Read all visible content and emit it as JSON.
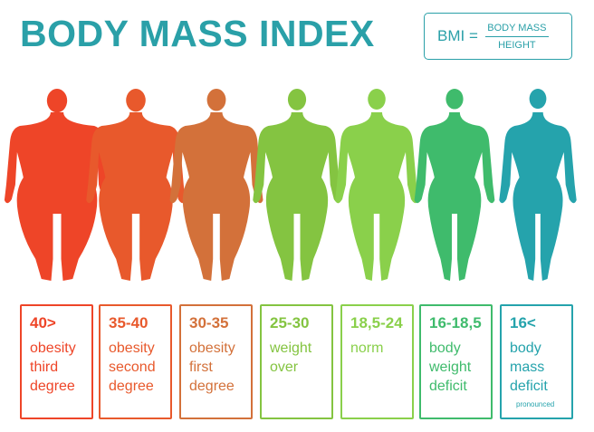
{
  "header": {
    "title": "BODY MASS INDEX",
    "formula_lhs": "BMI =",
    "formula_numerator": "BODY MASS",
    "formula_denominator": "HEIGHT"
  },
  "colors": {
    "title": "#2aa0a8",
    "categories": [
      "#ee4528",
      "#e8592c",
      "#d3713a",
      "#84c441",
      "#8ad04b",
      "#3fbb6c",
      "#25a3ac"
    ]
  },
  "categories": [
    {
      "range": "40>",
      "lines": [
        "obesity",
        "third",
        "degree"
      ],
      "color": "#ee4528",
      "build": 2.1
    },
    {
      "range": "35-40",
      "lines": [
        "obesity",
        "second",
        "degree"
      ],
      "color": "#e8592c",
      "build": 1.8
    },
    {
      "range": "30-35",
      "lines": [
        "obesity",
        "first",
        "degree"
      ],
      "color": "#d3713a",
      "build": 1.5
    },
    {
      "range": "25-30",
      "lines": [
        "weight",
        "over"
      ],
      "color": "#84c441",
      "build": 1.25
    },
    {
      "range": "18,5-24",
      "lines": [
        "norm"
      ],
      "color": "#8ad04b",
      "build": 1.0
    },
    {
      "range": "16-18,5",
      "lines": [
        "body",
        "weight",
        "deficit"
      ],
      "color": "#3fbb6c",
      "build": 0.85
    },
    {
      "range": "16<",
      "lines": [
        "body",
        "mass",
        "deficit"
      ],
      "note": "pronounced",
      "color": "#25a3ac",
      "build": 0.7
    }
  ]
}
